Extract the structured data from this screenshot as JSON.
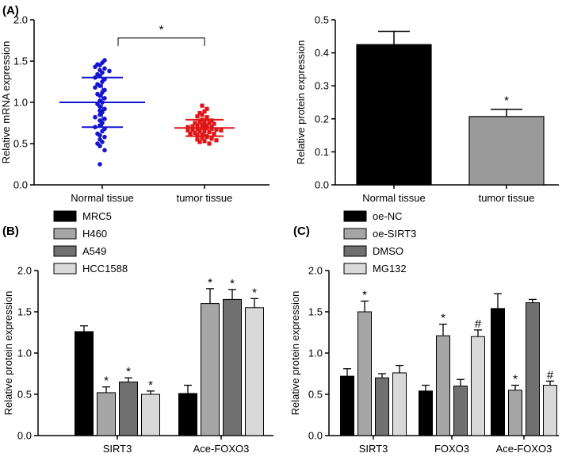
{
  "chart_data": [
    {
      "id": "A_left",
      "panel_label": "(A)",
      "type": "scatter",
      "categories": [
        "Normal tissue",
        "tumor tissue"
      ],
      "ylabel": "Relative mRNA expression",
      "ylim": [
        0,
        2.0
      ],
      "yticks": [
        "0.0",
        "0.5",
        "1.0",
        "1.5",
        "2.0"
      ],
      "series": [
        {
          "name": "Normal tissue",
          "color": "#1515d0",
          "mean": 1.0,
          "sd": 0.3,
          "points": [
            1.51,
            1.48,
            1.46,
            1.45,
            1.43,
            1.41,
            1.39,
            1.38,
            1.36,
            1.34,
            1.32,
            1.3,
            1.28,
            1.25,
            1.22,
            1.2,
            1.18,
            1.15,
            1.12,
            1.1,
            1.08,
            1.05,
            1.02,
            1.0,
            0.98,
            0.95,
            0.92,
            0.9,
            0.88,
            0.85,
            0.82,
            0.8,
            0.78,
            0.75,
            0.72,
            0.7,
            0.68,
            0.65,
            0.62,
            0.6,
            0.58,
            0.55,
            0.52,
            0.5,
            0.47,
            0.42,
            0.25
          ]
        },
        {
          "name": "tumor tissue",
          "color": "#e01515",
          "mean": 0.69,
          "sd": 0.1,
          "points": [
            0.96,
            0.92,
            0.89,
            0.87,
            0.85,
            0.83,
            0.82,
            0.8,
            0.79,
            0.78,
            0.77,
            0.76,
            0.75,
            0.75,
            0.74,
            0.73,
            0.72,
            0.72,
            0.71,
            0.7,
            0.7,
            0.69,
            0.69,
            0.68,
            0.68,
            0.67,
            0.67,
            0.66,
            0.66,
            0.65,
            0.65,
            0.64,
            0.63,
            0.62,
            0.62,
            0.61,
            0.6,
            0.59,
            0.58,
            0.57,
            0.56,
            0.55,
            0.54,
            0.53,
            0.52,
            0.5
          ]
        }
      ],
      "significance": "*"
    },
    {
      "id": "A_right",
      "type": "bar",
      "categories": [
        "Normal tissue",
        "tumor tissue"
      ],
      "values": [
        0.425,
        0.207
      ],
      "errors": [
        0.04,
        0.022
      ],
      "colors": [
        "#000000",
        "#9a9a9a"
      ],
      "markers": [
        "",
        "*"
      ],
      "ylabel": "Relative protein expression",
      "ylim": [
        0,
        0.5
      ],
      "yticks": [
        "0.0",
        "0.1",
        "0.2",
        "0.3",
        "0.4",
        "0.5"
      ]
    },
    {
      "id": "B",
      "panel_label": "(B)",
      "type": "bar",
      "categories": [
        "SIRT3",
        "Ace-FOXO3"
      ],
      "ylabel": "Relative protein expression",
      "ylim": [
        0,
        2.0
      ],
      "yticks": [
        "0.0",
        "0.5",
        "1.0",
        "1.5",
        "2.0"
      ],
      "series": [
        {
          "name": "MRC5",
          "color": "#000000",
          "values": [
            1.26,
            0.51
          ],
          "errors": [
            0.07,
            0.1
          ],
          "markers": [
            "",
            ""
          ]
        },
        {
          "name": "H460",
          "color": "#a6a6a6",
          "values": [
            0.52,
            1.6
          ],
          "errors": [
            0.07,
            0.18
          ],
          "markers": [
            "*",
            "*"
          ]
        },
        {
          "name": "A549",
          "color": "#707070",
          "values": [
            0.65,
            1.65
          ],
          "errors": [
            0.05,
            0.12
          ],
          "markers": [
            "*",
            "*"
          ]
        },
        {
          "name": "HCC1588",
          "color": "#d9d9d9",
          "values": [
            0.5,
            1.55
          ],
          "errors": [
            0.04,
            0.11
          ],
          "markers": [
            "*",
            "*"
          ]
        }
      ]
    },
    {
      "id": "C",
      "panel_label": "(C)",
      "type": "bar",
      "categories": [
        "SIRT3",
        "FOXO3",
        "Ace-FOXO3"
      ],
      "ylabel": "Relative protein expression",
      "ylim": [
        0,
        2.0
      ],
      "yticks": [
        "0.0",
        "0.5",
        "1.0",
        "1.5",
        "2.0"
      ],
      "series": [
        {
          "name": "oe-NC",
          "color": "#000000",
          "values": [
            0.72,
            0.54,
            1.54
          ],
          "errors": [
            0.09,
            0.07,
            0.18
          ],
          "markers": [
            "",
            "",
            ""
          ]
        },
        {
          "name": "oe-SIRT3",
          "color": "#a6a6a6",
          "values": [
            1.5,
            1.21,
            0.55
          ],
          "errors": [
            0.13,
            0.14,
            0.06
          ],
          "markers": [
            "*",
            "*",
            "*"
          ]
        },
        {
          "name": "DMSO",
          "color": "#707070",
          "values": [
            0.7,
            0.6,
            1.61
          ],
          "errors": [
            0.05,
            0.08,
            0.04
          ],
          "markers": [
            "",
            "",
            ""
          ]
        },
        {
          "name": "MG132",
          "color": "#d9d9d9",
          "values": [
            0.76,
            1.2,
            0.61
          ],
          "errors": [
            0.09,
            0.08,
            0.05
          ],
          "markers": [
            "",
            "#",
            "#"
          ]
        }
      ]
    }
  ]
}
